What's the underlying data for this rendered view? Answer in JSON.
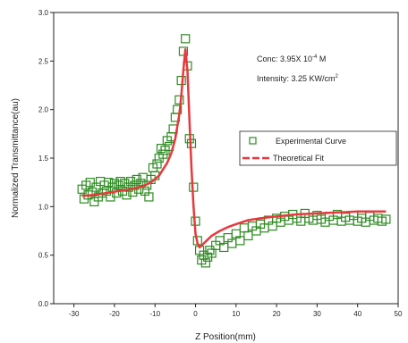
{
  "chart_data": {
    "type": "scatter",
    "xlabel": "Z Position(mm)",
    "ylabel": "Normalized Transmittance(au)",
    "xlim": [
      -35,
      50
    ],
    "ylim": [
      0.0,
      3.0
    ],
    "x_ticks": [
      -30,
      -20,
      -10,
      0,
      10,
      20,
      30,
      40,
      50
    ],
    "y_ticks": [
      0.0,
      0.5,
      1.0,
      1.5,
      2.0,
      2.5,
      3.0
    ],
    "x_tick_labels": [
      "-30",
      "-20",
      "-10",
      "0",
      "10",
      "20",
      "30",
      "40",
      "50"
    ],
    "y_tick_labels": [
      "0.0",
      "0.5",
      "1.0",
      "1.5",
      "2.0",
      "2.5",
      "3.0"
    ],
    "grid": false,
    "legend_position": "right",
    "annotations": {
      "conc_prefix": "Conc: 3.95X 10",
      "conc_exp": "-4",
      "conc_suffix": " M",
      "intensity_prefix": "Intensity: 3.25  KW/cm",
      "intensity_exp": "2"
    },
    "series": [
      {
        "name": "Experimental Curve",
        "style": "open-square",
        "color": "#2e8b22",
        "x": [
          -28,
          -27.5,
          -27,
          -26.5,
          -26,
          -25.5,
          -25,
          -24.5,
          -24,
          -23.5,
          -23,
          -22.5,
          -22,
          -21.5,
          -21,
          -20.5,
          -20,
          -19.5,
          -19,
          -18.5,
          -18,
          -17.5,
          -17,
          -16.5,
          -16,
          -15.5,
          -15,
          -14.5,
          -14,
          -13.5,
          -13,
          -12.5,
          -12,
          -11.5,
          -11,
          -10.5,
          -10,
          -9.5,
          -9,
          -8.5,
          -8,
          -7.5,
          -7,
          -6.5,
          -6,
          -5.5,
          -5,
          -4.5,
          -4,
          -3.5,
          -3,
          -2.5,
          -2,
          -1.5,
          -1,
          -0.5,
          0,
          0.5,
          1,
          1.5,
          2,
          2.5,
          3,
          3.5,
          4,
          5,
          6,
          7,
          8,
          9,
          10,
          11,
          12,
          13,
          14,
          15,
          16,
          17,
          18,
          19,
          20,
          21,
          22,
          23,
          24,
          25,
          26,
          27,
          28,
          29,
          30,
          31,
          32,
          33,
          34,
          35,
          36,
          37,
          38,
          39,
          40,
          41,
          42,
          43,
          44,
          45,
          46,
          47
        ],
        "y": [
          1.18,
          1.08,
          1.22,
          1.12,
          1.25,
          1.15,
          1.05,
          1.2,
          1.1,
          1.26,
          1.14,
          1.22,
          1.16,
          1.25,
          1.1,
          1.2,
          1.24,
          1.14,
          1.22,
          1.26,
          1.16,
          1.24,
          1.12,
          1.2,
          1.26,
          1.15,
          1.22,
          1.28,
          1.18,
          1.24,
          1.3,
          1.16,
          1.22,
          1.1,
          1.28,
          1.4,
          1.32,
          1.44,
          1.5,
          1.6,
          1.54,
          1.58,
          1.68,
          1.62,
          1.72,
          1.8,
          1.92,
          2.0,
          2.1,
          2.3,
          2.6,
          2.73,
          2.45,
          1.7,
          1.65,
          1.2,
          0.85,
          0.65,
          0.55,
          0.45,
          0.5,
          0.42,
          0.48,
          0.55,
          0.52,
          0.6,
          0.65,
          0.58,
          0.68,
          0.62,
          0.72,
          0.65,
          0.78,
          0.7,
          0.8,
          0.75,
          0.82,
          0.78,
          0.86,
          0.8,
          0.88,
          0.84,
          0.9,
          0.86,
          0.92,
          0.88,
          0.85,
          0.93,
          0.88,
          0.86,
          0.91,
          0.87,
          0.84,
          0.9,
          0.86,
          0.92,
          0.85,
          0.89,
          0.86,
          0.91,
          0.85,
          0.88,
          0.84,
          0.9,
          0.86,
          0.88,
          0.85,
          0.87
        ]
      },
      {
        "name": "Theoretical Fit",
        "style": "line",
        "color": "#e8383d",
        "x": [
          -28,
          -25,
          -22,
          -19,
          -16,
          -13,
          -11,
          -9,
          -7,
          -6,
          -5,
          -4,
          -3.5,
          -3,
          -2.5,
          -2,
          -1.5,
          -1,
          -0.5,
          0,
          0.5,
          1,
          1.5,
          2,
          3,
          4,
          6,
          8,
          10,
          13,
          16,
          20,
          25,
          30,
          35,
          40,
          45,
          47
        ],
        "y": [
          1.11,
          1.12,
          1.14,
          1.16,
          1.18,
          1.21,
          1.25,
          1.32,
          1.45,
          1.55,
          1.7,
          1.95,
          2.15,
          2.4,
          2.62,
          2.4,
          1.9,
          1.4,
          1.0,
          0.72,
          0.62,
          0.58,
          0.6,
          0.62,
          0.66,
          0.7,
          0.75,
          0.79,
          0.82,
          0.86,
          0.88,
          0.9,
          0.92,
          0.93,
          0.94,
          0.95,
          0.95,
          0.95
        ]
      }
    ]
  }
}
